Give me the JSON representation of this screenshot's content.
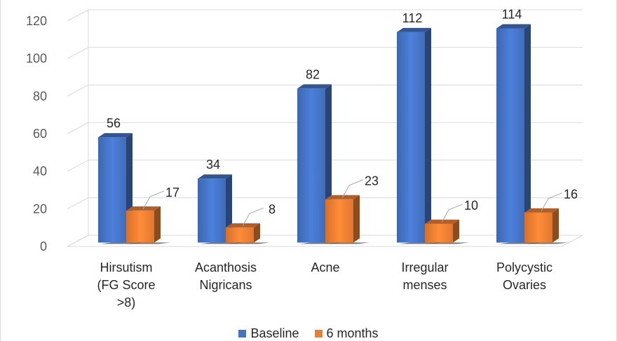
{
  "chart_data": {
    "type": "bar",
    "categories": [
      [
        "Hirsutism",
        "(FG Score",
        ">8)"
      ],
      [
        "Acanthosis",
        "Nigricans"
      ],
      [
        "Acne"
      ],
      [
        "Irregular",
        "menses"
      ],
      [
        "Polycystic",
        "Ovaries"
      ]
    ],
    "series": [
      {
        "name": "Baseline",
        "values": [
          56,
          34,
          82,
          112,
          114
        ],
        "color": "#4472C4"
      },
      {
        "name": "6 months",
        "values": [
          17,
          8,
          23,
          10,
          16
        ],
        "color": "#ED7D31"
      }
    ],
    "ylim": [
      0,
      120
    ],
    "yticks": [
      0,
      20,
      40,
      60,
      80,
      100,
      120
    ],
    "grid": true,
    "legend": "bottom",
    "three_d": true
  },
  "legend": {
    "baseline_label": "Baseline",
    "six_months_label": "6 months"
  }
}
